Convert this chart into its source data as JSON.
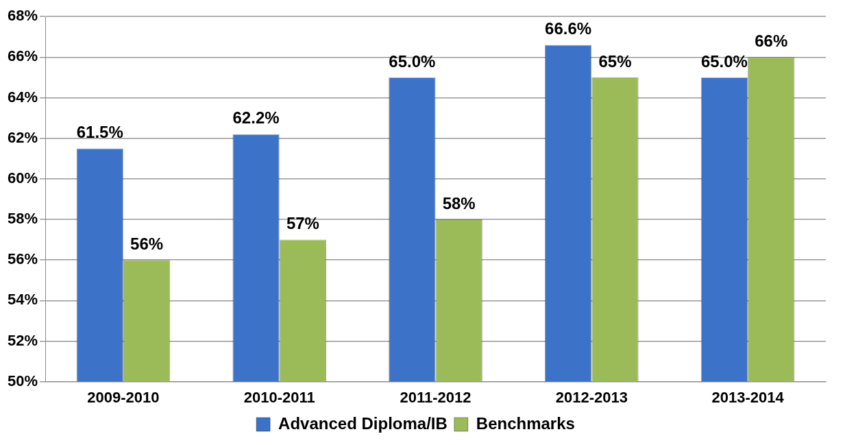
{
  "chart_data": {
    "type": "bar",
    "categories": [
      "2009-2010",
      "2010-2011",
      "2011-2012",
      "2012-2013",
      "2013-2014"
    ],
    "series": [
      {
        "name": "Advanced Diploma/IB",
        "color": "#3c72c8",
        "values": [
          61.5,
          62.2,
          65.0,
          66.6,
          65.0
        ],
        "value_labels": [
          "61.5%",
          "62.2%",
          "65.0%",
          "66.6%",
          "65.0%"
        ]
      },
      {
        "name": "Benchmarks",
        "color": "#9bbb59",
        "values": [
          56,
          57,
          58,
          65,
          66
        ],
        "value_labels": [
          "56%",
          "57%",
          "58%",
          "65%",
          "66%"
        ]
      }
    ],
    "ylim": [
      50,
      68
    ],
    "yticks": [
      {
        "value": 50,
        "label": "50%"
      },
      {
        "value": 52,
        "label": "52%"
      },
      {
        "value": 54,
        "label": "54%"
      },
      {
        "value": 56,
        "label": "56%"
      },
      {
        "value": 58,
        "label": "58%"
      },
      {
        "value": 60,
        "label": "60%"
      },
      {
        "value": 62,
        "label": "62%"
      },
      {
        "value": 64,
        "label": "64%"
      },
      {
        "value": 66,
        "label": "66%"
      },
      {
        "value": 68,
        "label": "68%"
      }
    ],
    "grid": "y",
    "legend": "bottom"
  }
}
